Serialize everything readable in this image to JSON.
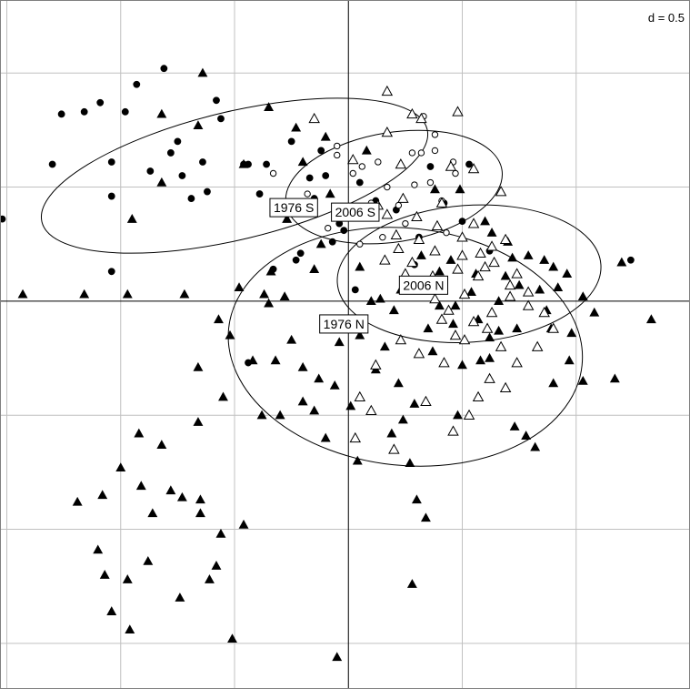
{
  "chart_data": {
    "type": "scatter",
    "title": "",
    "xlabel": "",
    "ylabel": "",
    "scale_label": "d = 0.5",
    "grid": true,
    "grid_step": 0.5,
    "xlim": [
      -1.53,
      1.5
    ],
    "ylim": [
      -1.7,
      1.32
    ],
    "groups": [
      {
        "name": "1976 S",
        "marker": "filled-circle",
        "color": "#000000",
        "ellipse": {
          "cx": -0.5,
          "cy": 0.55,
          "rx": 0.87,
          "ry": 0.28,
          "angle_deg": -13.5
        },
        "label_pos": [
          -0.24,
          0.41
        ],
        "points": [
          [
            -1.26,
            0.82
          ],
          [
            -0.93,
            0.95
          ],
          [
            -1.04,
            0.46
          ],
          [
            -0.58,
            0.88
          ],
          [
            -0.78,
            0.65
          ],
          [
            -0.87,
            0.57
          ],
          [
            -1.3,
            0.6
          ],
          [
            -1.52,
            0.36
          ],
          [
            -1.04,
            0.13
          ],
          [
            -0.73,
            0.55
          ],
          [
            -0.46,
            0.6
          ],
          [
            -0.39,
            0.47
          ],
          [
            -0.25,
            0.7
          ],
          [
            -0.1,
            0.55
          ],
          [
            -0.04,
            0.34
          ],
          [
            -0.23,
            0.18
          ],
          [
            -0.33,
            0.14
          ],
          [
            -0.44,
            0.6
          ],
          [
            -0.62,
            0.48
          ],
          [
            -0.98,
            0.83
          ],
          [
            -0.75,
            0.7
          ],
          [
            -0.12,
            0.66
          ],
          [
            0.36,
            0.59
          ],
          [
            0.42,
            0.43
          ],
          [
            0.53,
            0.6
          ],
          [
            1.24,
            0.18
          ],
          [
            -0.44,
            -0.27
          ],
          [
            -1.04,
            0.61
          ],
          [
            -0.69,
            0.45
          ],
          [
            -0.3,
            0.4
          ],
          [
            -0.15,
            0.45
          ],
          [
            -0.56,
            0.8
          ],
          [
            -0.81,
            1.02
          ],
          [
            -1.09,
            0.87
          ],
          [
            -1.56,
            0.61
          ],
          [
            -0.17,
            0.54
          ],
          [
            0.05,
            0.52
          ],
          [
            0.31,
            0.28
          ],
          [
            0.62,
            0.22
          ],
          [
            -0.02,
            0.31
          ],
          [
            0.12,
            0.44
          ],
          [
            0.21,
            0.4
          ],
          [
            0.5,
            0.35
          ],
          [
            0.29,
            0.16
          ],
          [
            -0.07,
            0.26
          ],
          [
            -1.16,
            0.83
          ],
          [
            -0.64,
            0.61
          ],
          [
            -0.36,
            0.6
          ],
          [
            -0.21,
            0.21
          ],
          [
            0.03,
            0.05
          ]
        ]
      },
      {
        "name": "2006 S",
        "marker": "open-circle",
        "color": "#000000",
        "ellipse": {
          "cx": 0.2,
          "cy": 0.5,
          "rx": 0.48,
          "ry": 0.24,
          "angle_deg": -9
        },
        "label_pos": [
          0.03,
          0.39
        ],
        "points": [
          [
            0.33,
            0.81
          ],
          [
            0.38,
            0.73
          ],
          [
            0.32,
            0.65
          ],
          [
            0.28,
            0.65
          ],
          [
            0.38,
            0.66
          ],
          [
            0.46,
            0.61
          ],
          [
            0.47,
            0.56
          ],
          [
            0.13,
            0.61
          ],
          [
            -0.05,
            0.64
          ],
          [
            -0.33,
            0.56
          ],
          [
            -0.05,
            0.68
          ],
          [
            0.06,
            0.59
          ],
          [
            0.17,
            0.5
          ],
          [
            0.22,
            0.42
          ],
          [
            0.1,
            0.43
          ],
          [
            0.36,
            0.52
          ],
          [
            0.41,
            0.44
          ],
          [
            0.05,
            0.25
          ],
          [
            0.15,
            0.28
          ],
          [
            0.25,
            0.34
          ],
          [
            -0.18,
            0.47
          ],
          [
            -0.09,
            0.32
          ],
          [
            0.43,
            0.3
          ],
          [
            0.29,
            0.51
          ],
          [
            0.02,
            0.56
          ]
        ]
      },
      {
        "name": "1976 N",
        "marker": "filled-triangle",
        "color": "#000000",
        "ellipse": {
          "cx": 0.25,
          "cy": -0.2,
          "rx": 0.78,
          "ry": 0.52,
          "angle_deg": 6
        },
        "label_pos": [
          -0.02,
          -0.1
        ],
        "points": [
          [
            -0.64,
            1.0
          ],
          [
            -0.82,
            0.82
          ],
          [
            -0.82,
            0.52
          ],
          [
            -0.46,
            0.6
          ],
          [
            -0.27,
            0.36
          ],
          [
            -0.1,
            0.72
          ],
          [
            -0.08,
            0.47
          ],
          [
            0.05,
            0.15
          ],
          [
            0.38,
            0.49
          ],
          [
            0.49,
            0.49
          ],
          [
            0.45,
            0.18
          ],
          [
            0.56,
            0.12
          ],
          [
            0.69,
            0.11
          ],
          [
            0.63,
            0.3
          ],
          [
            0.86,
            0.18
          ],
          [
            0.9,
            0.15
          ],
          [
            0.92,
            0.06
          ],
          [
            1.2,
            0.17
          ],
          [
            0.98,
            -0.14
          ],
          [
            1.08,
            -0.05
          ],
          [
            0.97,
            -0.26
          ],
          [
            1.03,
            -0.35
          ],
          [
            1.17,
            -0.34
          ],
          [
            0.89,
            -0.12
          ],
          [
            -1.43,
            0.03
          ],
          [
            -1.16,
            0.03
          ],
          [
            -0.95,
            0.36
          ],
          [
            -0.97,
            0.03
          ],
          [
            -0.72,
            0.03
          ],
          [
            -0.37,
            0.03
          ],
          [
            -0.28,
            0.02
          ],
          [
            -0.15,
            0.14
          ],
          [
            -0.52,
            -0.15
          ],
          [
            -0.42,
            -0.26
          ],
          [
            -0.32,
            -0.26
          ],
          [
            -0.2,
            -0.29
          ],
          [
            -0.06,
            -0.37
          ],
          [
            -0.2,
            -0.44
          ],
          [
            -0.38,
            -0.5
          ],
          [
            -0.55,
            -0.42
          ],
          [
            -0.66,
            -0.53
          ],
          [
            -0.82,
            -0.63
          ],
          [
            -0.92,
            -0.58
          ],
          [
            -1.19,
            -0.88
          ],
          [
            -1.08,
            -0.85
          ],
          [
            -1.0,
            -0.73
          ],
          [
            -0.91,
            -0.81
          ],
          [
            -0.86,
            -0.93
          ],
          [
            -0.73,
            -0.86
          ],
          [
            -0.65,
            -0.87
          ],
          [
            -0.65,
            -0.93
          ],
          [
            -0.46,
            -0.98
          ],
          [
            -0.56,
            -1.02
          ],
          [
            -0.78,
            -0.83
          ],
          [
            -1.1,
            -1.09
          ],
          [
            -1.07,
            -1.2
          ],
          [
            -0.97,
            -1.22
          ],
          [
            -1.04,
            -1.36
          ],
          [
            -0.96,
            -1.44
          ],
          [
            -0.88,
            -1.14
          ],
          [
            -0.74,
            -1.3
          ],
          [
            -0.61,
            -1.22
          ],
          [
            -0.58,
            -1.16
          ],
          [
            -0.51,
            -1.48
          ],
          [
            -0.05,
            -1.56
          ],
          [
            0.28,
            -1.24
          ],
          [
            0.04,
            -0.7
          ],
          [
            0.19,
            -0.58
          ],
          [
            0.24,
            -0.52
          ],
          [
            0.27,
            -0.71
          ],
          [
            0.3,
            -0.87
          ],
          [
            0.34,
            -0.95
          ],
          [
            0.48,
            -0.5
          ],
          [
            0.58,
            -0.26
          ],
          [
            0.62,
            -0.25
          ],
          [
            0.73,
            -0.55
          ],
          [
            0.78,
            -0.59
          ],
          [
            0.82,
            -0.64
          ],
          [
            0.9,
            -0.36
          ],
          [
            0.46,
            -0.1
          ],
          [
            0.37,
            -0.22
          ],
          [
            0.22,
            -0.36
          ],
          [
            0.12,
            -0.3
          ],
          [
            -0.15,
            -0.48
          ],
          [
            -0.13,
            -0.34
          ],
          [
            -0.25,
            -0.17
          ],
          [
            -0.35,
            -0.01
          ],
          [
            0.1,
            0.0
          ],
          [
            0.23,
            0.05
          ],
          [
            0.4,
            0.13
          ],
          [
            0.2,
            -0.04
          ],
          [
            0.05,
            -0.15
          ],
          [
            0.62,
            -0.16
          ],
          [
            0.5,
            -0.28
          ],
          [
            0.29,
            -0.45
          ],
          [
            1.33,
            -0.08
          ],
          [
            1.55,
            0.02
          ],
          [
            1.03,
            0.02
          ],
          [
            0.96,
            0.12
          ],
          [
            0.7,
            0.26
          ],
          [
            0.79,
            0.2
          ],
          [
            0.84,
            0.05
          ],
          [
            0.87,
            -0.04
          ],
          [
            -0.66,
            0.77
          ],
          [
            -0.35,
            0.85
          ],
          [
            -0.12,
            0.25
          ],
          [
            0.14,
            0.01
          ],
          [
            0.28,
            0.06
          ],
          [
            0.32,
            0.2
          ],
          [
            0.4,
            -0.02
          ],
          [
            0.54,
            0.04
          ],
          [
            0.66,
            0.0
          ],
          [
            0.74,
            -0.12
          ],
          [
            0.75,
            0.07
          ],
          [
            -0.3,
            -0.5
          ],
          [
            -0.04,
            -0.18
          ],
          [
            0.16,
            -0.2
          ],
          [
            0.35,
            -0.12
          ],
          [
            0.47,
            -0.02
          ],
          [
            0.57,
            -0.08
          ],
          [
            0.66,
            -0.13
          ],
          [
            0.72,
            0.19
          ],
          [
            0.6,
            0.35
          ],
          [
            -0.23,
            0.76
          ],
          [
            -0.2,
            0.61
          ],
          [
            0.08,
            0.66
          ],
          [
            -0.34,
            0.13
          ],
          [
            -0.48,
            0.06
          ],
          [
            -0.57,
            -0.08
          ],
          [
            -0.66,
            -0.29
          ],
          [
            0.01,
            -0.46
          ],
          [
            -0.1,
            -0.6
          ]
        ]
      },
      {
        "name": "2006 N",
        "marker": "open-triangle",
        "color": "#000000",
        "ellipse": {
          "cx": 0.53,
          "cy": 0.12,
          "rx": 0.58,
          "ry": 0.3,
          "angle_deg": -4
        },
        "label_pos": [
          0.33,
          0.07
        ],
        "points": [
          [
            0.17,
            0.92
          ],
          [
            0.28,
            0.82
          ],
          [
            0.32,
            0.8
          ],
          [
            0.48,
            0.83
          ],
          [
            0.17,
            0.74
          ],
          [
            -0.15,
            0.8
          ],
          [
            0.02,
            0.62
          ],
          [
            0.23,
            0.6
          ],
          [
            0.45,
            0.59
          ],
          [
            0.55,
            0.58
          ],
          [
            0.67,
            0.48
          ],
          [
            0.41,
            0.43
          ],
          [
            0.24,
            0.45
          ],
          [
            0.13,
            0.42
          ],
          [
            0.07,
            0.37
          ],
          [
            0.17,
            0.38
          ],
          [
            0.31,
            0.27
          ],
          [
            0.38,
            0.22
          ],
          [
            0.5,
            0.2
          ],
          [
            0.6,
            0.15
          ],
          [
            0.71,
            0.07
          ],
          [
            0.79,
            0.04
          ],
          [
            0.86,
            -0.05
          ],
          [
            0.9,
            -0.12
          ],
          [
            0.83,
            -0.2
          ],
          [
            0.74,
            -0.27
          ],
          [
            0.69,
            -0.38
          ],
          [
            0.62,
            -0.34
          ],
          [
            0.57,
            -0.42
          ],
          [
            0.53,
            -0.5
          ],
          [
            0.46,
            -0.57
          ],
          [
            0.34,
            -0.44
          ],
          [
            0.2,
            -0.65
          ],
          [
            0.03,
            -0.6
          ],
          [
            0.1,
            -0.48
          ],
          [
            0.05,
            -0.42
          ],
          [
            0.12,
            -0.28
          ],
          [
            0.23,
            -0.17
          ],
          [
            0.31,
            -0.23
          ],
          [
            0.42,
            -0.27
          ],
          [
            0.47,
            -0.15
          ],
          [
            0.55,
            -0.09
          ],
          [
            0.63,
            -0.05
          ],
          [
            0.71,
            0.02
          ],
          [
            0.79,
            -0.02
          ],
          [
            0.74,
            0.12
          ],
          [
            0.63,
            0.24
          ],
          [
            0.55,
            0.34
          ],
          [
            0.5,
            0.28
          ],
          [
            0.39,
            0.33
          ],
          [
            0.3,
            0.37
          ],
          [
            0.21,
            0.29
          ],
          [
            0.16,
            0.18
          ],
          [
            0.25,
            0.12
          ],
          [
            0.31,
            0.05
          ],
          [
            0.38,
            0.01
          ],
          [
            0.44,
            -0.04
          ],
          [
            0.51,
            0.03
          ],
          [
            0.57,
            0.11
          ],
          [
            0.64,
            0.17
          ],
          [
            0.69,
            0.27
          ],
          [
            0.58,
            0.21
          ],
          [
            0.48,
            0.14
          ],
          [
            0.37,
            0.11
          ],
          [
            0.28,
            0.17
          ],
          [
            0.22,
            0.23
          ],
          [
            0.41,
            -0.08
          ],
          [
            0.51,
            -0.17
          ],
          [
            0.61,
            -0.12
          ],
          [
            0.67,
            -0.2
          ]
        ]
      }
    ]
  }
}
